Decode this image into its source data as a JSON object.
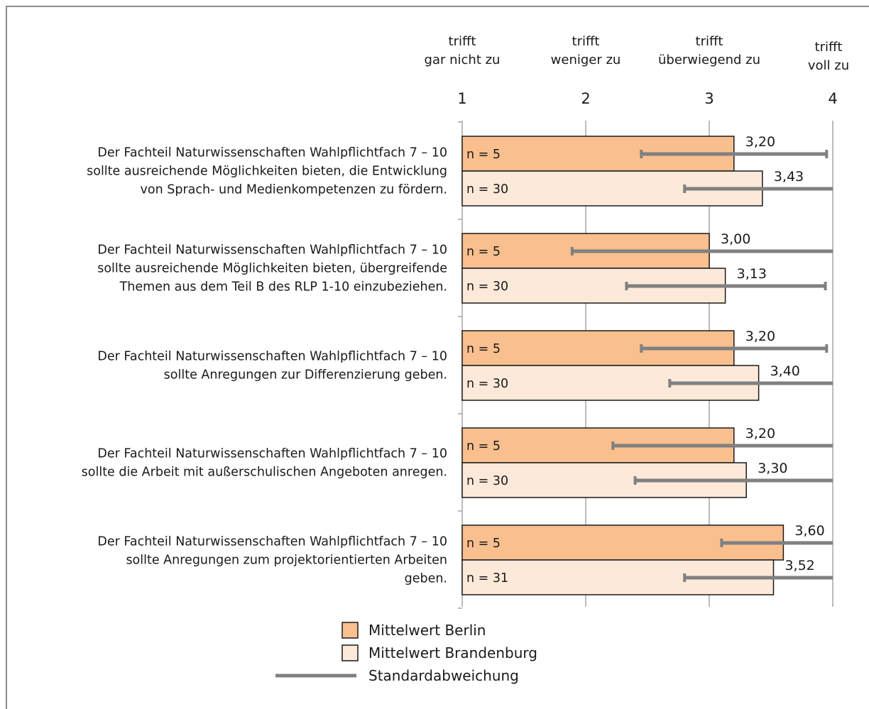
{
  "chart_data": {
    "type": "bar",
    "orientation": "horizontal",
    "title": "",
    "xlabel": "",
    "ylabel": "",
    "xlim": [
      1,
      4
    ],
    "x_ticks": [
      1,
      2,
      3,
      4
    ],
    "scale_labels": [
      {
        "value": 1,
        "lines": [
          "trifft",
          "gar nicht zu"
        ]
      },
      {
        "value": 2,
        "lines": [
          "trifft",
          "weniger zu"
        ]
      },
      {
        "value": 3,
        "lines": [
          "trifft",
          "überwiegend zu"
        ]
      },
      {
        "value": 4,
        "lines": [
          "trifft",
          "voll  zu"
        ]
      }
    ],
    "grid": true,
    "legend_position": "bottom",
    "legend": [
      {
        "key": "berlin",
        "label": "Mittelwert Berlin",
        "kind": "box"
      },
      {
        "key": "brandenburg",
        "label": "Mittelwert Brandenburg",
        "kind": "box"
      },
      {
        "key": "sd",
        "label": "Standardabweichung",
        "kind": "line"
      }
    ],
    "colors": {
      "berlin": "#f9bf8f",
      "brandenburg": "#fde9d9",
      "bar_stroke": "#1a1a1a",
      "error_bar": "#808080",
      "grid": "#a6a6a6"
    },
    "categories": [
      {
        "lines": [
          "Der Fachteil Naturwissenschaften Wahlpflichtfach 7 – 10",
          "sollte ausreichende Möglichkeiten bieten, die Entwicklung",
          "von Sprach- und Medienkompetenzen zu fördern."
        ],
        "bars": [
          {
            "series": "berlin",
            "n_label": "n = 5",
            "value": 3.2,
            "value_label": "3,20",
            "sd_low": 2.45,
            "sd_high": 3.95
          },
          {
            "series": "brandenburg",
            "n_label": "n = 30",
            "value": 3.43,
            "value_label": "3,43",
            "sd_low": 2.8,
            "sd_high": 4.0
          }
        ]
      },
      {
        "lines": [
          "Der Fachteil Naturwissenschaften Wahlpflichtfach 7 – 10",
          "sollte ausreichende Möglichkeiten bieten, übergreifende",
          "Themen aus dem Teil B des RLP 1-10 einzubeziehen."
        ],
        "bars": [
          {
            "series": "berlin",
            "n_label": "n = 5",
            "value": 3.0,
            "value_label": "3,00",
            "sd_low": 1.89,
            "sd_high": 4.0
          },
          {
            "series": "brandenburg",
            "n_label": "n = 30",
            "value": 3.13,
            "value_label": "3,13",
            "sd_low": 2.33,
            "sd_high": 3.94
          }
        ]
      },
      {
        "lines": [
          "Der Fachteil Naturwissenschaften Wahlpflichtfach 7 – 10",
          "sollte Anregungen zur Differenzierung geben."
        ],
        "bars": [
          {
            "series": "berlin",
            "n_label": "n = 5",
            "value": 3.2,
            "value_label": "3,20",
            "sd_low": 2.45,
            "sd_high": 3.95
          },
          {
            "series": "brandenburg",
            "n_label": "n = 30",
            "value": 3.4,
            "value_label": "3,40",
            "sd_low": 2.68,
            "sd_high": 4.0
          }
        ]
      },
      {
        "lines": [
          "Der Fachteil Naturwissenschaften Wahlpflichtfach 7 – 10",
          "sollte die Arbeit mit außerschulischen Angeboten anregen."
        ],
        "bars": [
          {
            "series": "berlin",
            "n_label": "n = 5",
            "value": 3.2,
            "value_label": "3,20",
            "sd_low": 2.22,
            "sd_high": 4.0
          },
          {
            "series": "brandenburg",
            "n_label": "n = 30",
            "value": 3.3,
            "value_label": "3,30",
            "sd_low": 2.4,
            "sd_high": 4.0
          }
        ]
      },
      {
        "lines": [
          "Der Fachteil Naturwissenschaften Wahlpflichtfach 7 – 10",
          "sollte Anregungen zum projektorientierten Arbeiten",
          "geben."
        ],
        "bars": [
          {
            "series": "berlin",
            "n_label": "n = 5",
            "value": 3.6,
            "value_label": "3,60",
            "sd_low": 3.1,
            "sd_high": 4.0
          },
          {
            "series": "brandenburg",
            "n_label": "n = 31",
            "value": 3.52,
            "value_label": "3,52",
            "sd_low": 2.8,
            "sd_high": 4.0
          }
        ]
      }
    ]
  }
}
